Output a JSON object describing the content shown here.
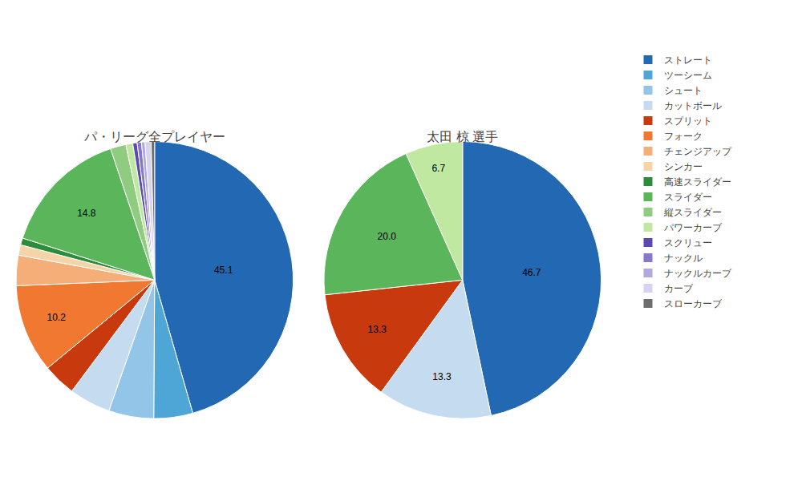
{
  "chart_data": [
    {
      "type": "pie",
      "title": "パ・リーグ全プレイヤー",
      "categories": [
        "ストレート",
        "ツーシーム",
        "シュート",
        "カットボール",
        "スプリット",
        "フォーク",
        "チェンジアップ",
        "シンカー",
        "高速スライダー",
        "スライダー",
        "縦スライダー",
        "パワーカーブ",
        "スクリュー",
        "ナックル",
        "ナックルカーブ",
        "カーブ",
        "スローカーブ"
      ],
      "values": [
        45.1,
        4.5,
        5.2,
        4.8,
        3.8,
        10.2,
        3.5,
        1.2,
        0.8,
        14.8,
        1.8,
        0.8,
        0.5,
        0.5,
        0.4,
        0.7,
        0.4
      ],
      "colors": [
        "#2368B2",
        "#4DA6D6",
        "#92C5E8",
        "#C5DCF0",
        "#C8390E",
        "#F07830",
        "#F5AE78",
        "#F5D5A8",
        "#2D8B3C",
        "#5BB55A",
        "#8FCC80",
        "#C0E8A0",
        "#5B4BAF",
        "#8878C8",
        "#B0A8E0",
        "#D8D4F0",
        "#6E6E6E"
      ],
      "value_labels": [
        "45.1",
        null,
        null,
        null,
        null,
        "10.2",
        null,
        null,
        null,
        "14.8",
        null,
        null,
        null,
        null,
        null,
        null,
        null
      ],
      "data_labels": true,
      "legend": "right"
    },
    {
      "type": "pie",
      "title": "太田 椋 選手",
      "categories": [
        "ストレート",
        "カットボール",
        "スプリット",
        "スライダー",
        "パワーカーブ"
      ],
      "values": [
        46.7,
        13.3,
        13.3,
        20.0,
        6.7
      ],
      "colors": [
        "#2368B2",
        "#C5DCF0",
        "#C8390E",
        "#5BB55A",
        "#C0E8A0"
      ],
      "value_labels": [
        "46.7",
        "13.3",
        "13.3",
        "20.0",
        "6.7"
      ],
      "data_labels": true,
      "legend": "right"
    }
  ]
}
